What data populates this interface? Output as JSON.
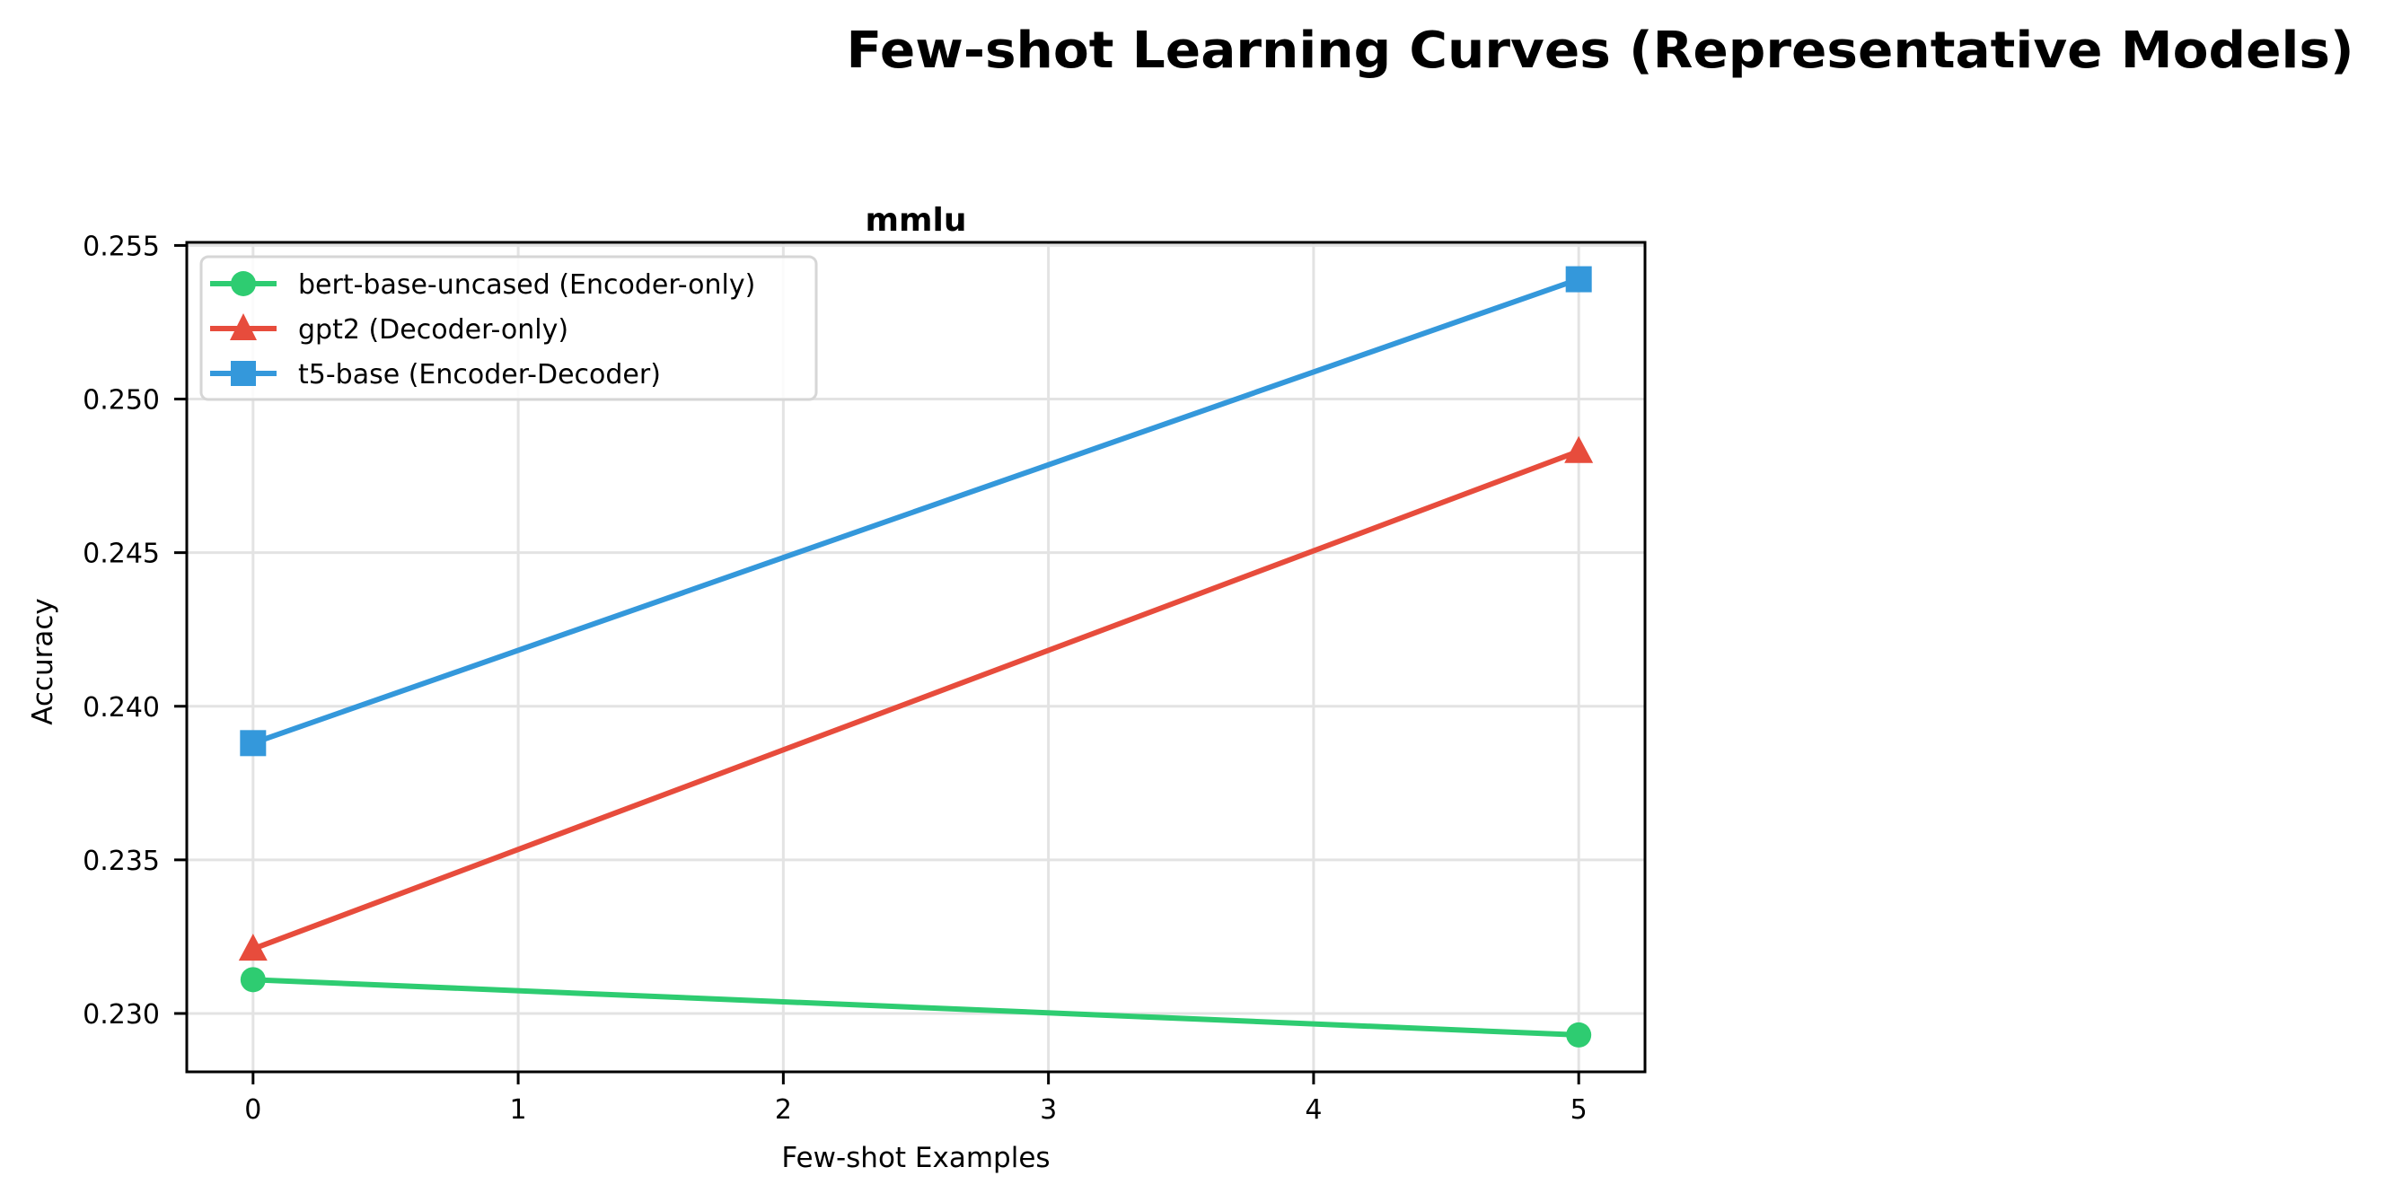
{
  "figure": {
    "suptitle": "Few-shot Learning Curves (Representative Models)"
  },
  "chart_data": {
    "type": "line",
    "title": "mmlu",
    "suptitle": "Few-shot Learning Curves (Representative Models)",
    "xlabel": "Few-shot Examples",
    "ylabel": "Accuracy",
    "x": [
      0,
      5
    ],
    "xticks": [
      "0",
      "1",
      "2",
      "3",
      "4",
      "5"
    ],
    "yticks": [
      "0.230",
      "0.235",
      "0.240",
      "0.245",
      "0.250",
      "0.255"
    ],
    "xlim": [
      -0.25,
      5.25
    ],
    "ylim": [
      0.2281,
      0.2551
    ],
    "grid": true,
    "legend_position": "upper left",
    "series": [
      {
        "name": "bert-base-uncased (Encoder-only)",
        "marker": "circle",
        "color": "#2ecc71",
        "values": [
          0.2311,
          0.2293
        ]
      },
      {
        "name": "gpt2 (Decoder-only)",
        "marker": "triangle",
        "color": "#e74c3c",
        "values": [
          0.2321,
          0.2483
        ]
      },
      {
        "name": "t5-base (Encoder-Decoder)",
        "marker": "square",
        "color": "#3498db",
        "values": [
          0.2388,
          0.2539
        ]
      }
    ]
  }
}
